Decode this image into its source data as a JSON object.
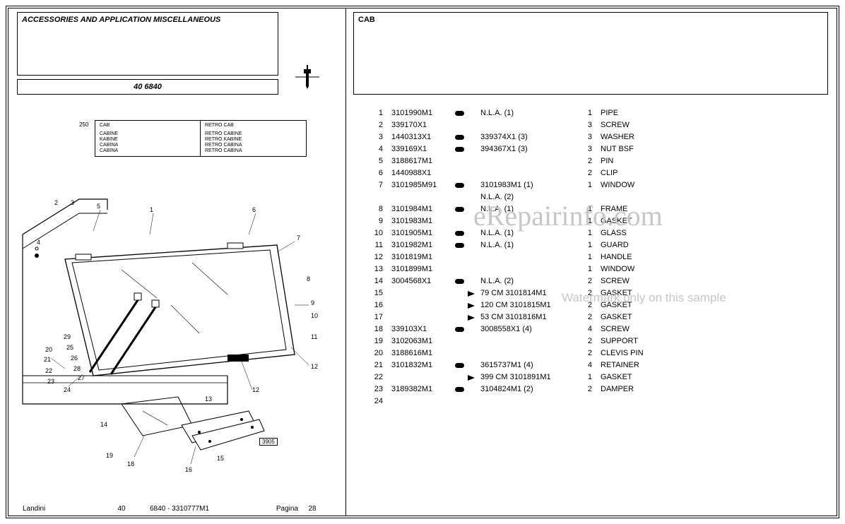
{
  "header_left_title": "ACCESSORIES AND APPLICATION MISCELLANEOUS",
  "header_right_title": "CAB",
  "part_code": "40 6840",
  "lang": {
    "num": "250",
    "left_hdr": "CAB",
    "left_rows": [
      "CABINE",
      "KABINE",
      "CABINA",
      "CABINA"
    ],
    "right_hdr": "RETRO CAB",
    "right_rows": [
      "RETRO CABINE",
      "RETRO KABINE",
      "RETRO CABINA",
      "RETRO CABINA"
    ]
  },
  "rows": [
    {
      "i": "1",
      "pn": "3101990M1",
      "s1": "pill",
      "ref": "N.L.A.  (1)",
      "q": "1",
      "d": "PIPE"
    },
    {
      "i": "2",
      "pn": "339170X1",
      "ref": "",
      "q": "3",
      "d": "SCREW"
    },
    {
      "i": "3",
      "pn": "1440313X1",
      "s1": "pill",
      "ref": "339374X1  (3)",
      "q": "3",
      "d": "WASHER"
    },
    {
      "i": "4",
      "pn": "339169X1",
      "s1": "pill",
      "ref": "394367X1  (3)",
      "q": "3",
      "d": "NUT BSF"
    },
    {
      "i": "5",
      "pn": "3188617M1",
      "ref": "",
      "q": "2",
      "d": "PIN"
    },
    {
      "i": "6",
      "pn": "1440988X1",
      "ref": "",
      "q": "2",
      "d": "CLIP"
    },
    {
      "i": "7",
      "pn": "3101985M91",
      "s1": "pill",
      "ref": "3101983M1  (1)",
      "q": "1",
      "d": "WINDOW"
    },
    {
      "i": "",
      "pn": "",
      "ref": "N.L.A.  (2)",
      "q": "",
      "d": ""
    },
    {
      "i": "8",
      "pn": "3101984M1",
      "s1": "pill",
      "ref": "N.L.A.  (1)",
      "q": "1",
      "d": "FRAME"
    },
    {
      "i": "9",
      "pn": "3101983M1",
      "ref": "",
      "q": "1",
      "d": "GASKET"
    },
    {
      "i": "10",
      "pn": "3101905M1",
      "s1": "pill",
      "ref": "N.L.A.  (1)",
      "q": "1",
      "d": "GLASS"
    },
    {
      "i": "11",
      "pn": "3101982M1",
      "s1": "pill",
      "ref": "N.L.A.  (1)",
      "q": "1",
      "d": "GUARD"
    },
    {
      "i": "12",
      "pn": "3101819M1",
      "ref": "",
      "q": "1",
      "d": "HANDLE"
    },
    {
      "i": "13",
      "pn": "3101899M1",
      "ref": "",
      "q": "1",
      "d": "WINDOW"
    },
    {
      "i": "14",
      "pn": "3004568X1",
      "s1": "pill",
      "ref": "N.L.A.  (2)",
      "q": "2",
      "d": "SCREW"
    },
    {
      "i": "15",
      "pn": "",
      "s2": "arrow",
      "ref": "79 CM 3101814M1",
      "q": "2",
      "d": "GASKET"
    },
    {
      "i": "16",
      "pn": "",
      "s2": "arrow",
      "ref": "120 CM 3101815M1",
      "q": "2",
      "d": "GASKET"
    },
    {
      "i": "17",
      "pn": "",
      "s2": "arrow",
      "ref": "53 CM 3101816M1",
      "q": "2",
      "d": "GASKET"
    },
    {
      "i": "18",
      "pn": "339103X1",
      "s1": "pill",
      "ref": "3008558X1  (4)",
      "q": "4",
      "d": "SCREW"
    },
    {
      "i": "19",
      "pn": "3102063M1",
      "ref": "",
      "q": "2",
      "d": "SUPPORT"
    },
    {
      "i": "20",
      "pn": "3188616M1",
      "ref": "",
      "q": "2",
      "d": "CLEVIS PIN"
    },
    {
      "i": "21",
      "pn": "3101832M1",
      "s1": "pill",
      "ref": "3615737M1  (4)",
      "q": "4",
      "d": "RETAINER"
    },
    {
      "i": "22",
      "pn": "",
      "s2": "arrow",
      "ref": "399 CM 3101891M1",
      "q": "1",
      "d": "GASKET"
    },
    {
      "i": "23",
      "pn": "3189382M1",
      "s1": "pill",
      "ref": "3104824M1  (2)",
      "q": "2",
      "d": "DAMPER"
    },
    {
      "i": "24",
      "pn": "",
      "ref": "",
      "q": "",
      "d": ""
    }
  ],
  "row_index_shift": 0,
  "watermark_big": "eRepairinfo.com",
  "watermark_small": "Watermark only on this sample",
  "diagram_box": "3905",
  "footer": {
    "brand": "Landini",
    "c1": "40",
    "c2": "6840 - 3310777M1",
    "c3": "Pagina",
    "c4": "28"
  }
}
